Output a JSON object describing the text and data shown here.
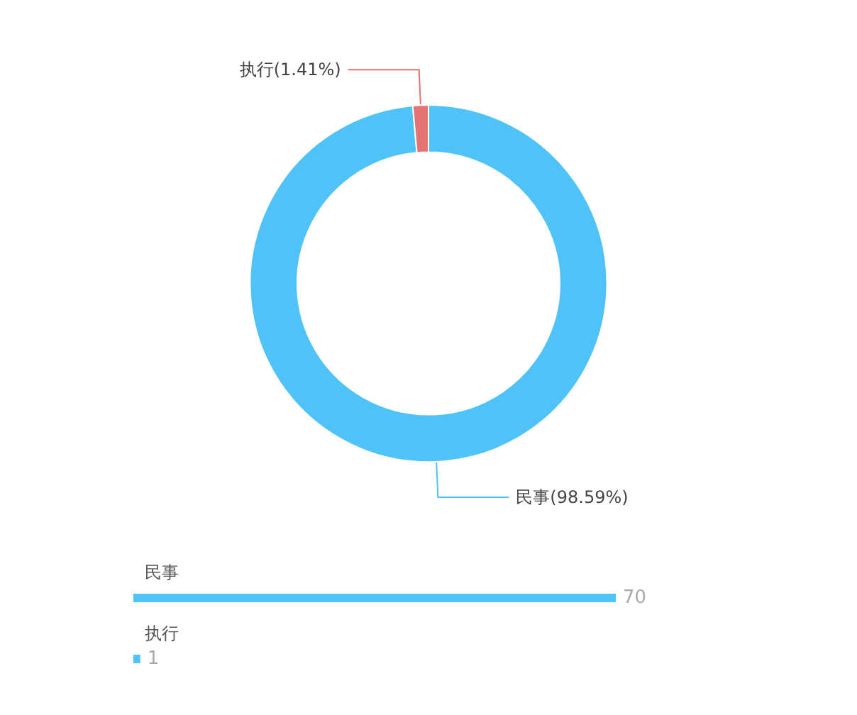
{
  "chart_data": [
    {
      "type": "donut",
      "categories": [
        "民事",
        "执行"
      ],
      "values": [
        98.59,
        1.41
      ],
      "colors": [
        "#4fc3f7",
        "#e57373"
      ],
      "value_labels": [
        "(98.59%)",
        "(1.41%)"
      ]
    },
    {
      "type": "bar",
      "orientation": "horizontal",
      "categories": [
        "民事",
        "执行"
      ],
      "values": [
        70,
        1
      ],
      "color": "#4fc3f7",
      "data_labels": true,
      "tick_labels": "y"
    }
  ]
}
